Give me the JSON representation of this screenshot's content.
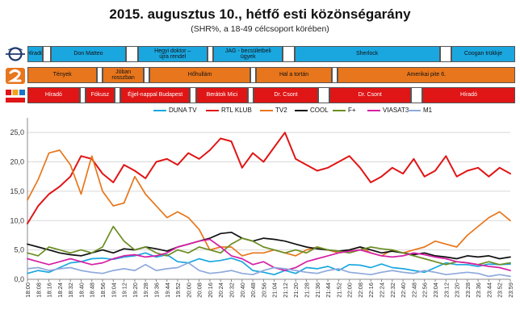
{
  "title": "2015. augusztus 10., hétfő esti közönségarány",
  "subtitle": "(SHR%, a 18-49 célcsoport körében)",
  "schedule": [
    {
      "channel_icon": "m1-logo-icon",
      "fill": "#1aa7e0",
      "text_color": "#111111",
      "programs": [
        {
          "label": "Híradó",
          "start": 0,
          "end": 13
        },
        {
          "label": "",
          "start": 13,
          "end": 20,
          "gap": true
        },
        {
          "label": "Don Matteo",
          "start": 20,
          "end": 85
        },
        {
          "label": "",
          "start": 85,
          "end": 95,
          "gap": true
        },
        {
          "label": "Hegyi doktor –\nújra rendel",
          "start": 95,
          "end": 155
        },
        {
          "label": "",
          "start": 155,
          "end": 160,
          "gap": true
        },
        {
          "label": "JAG - becsületbeli\nügyek",
          "start": 160,
          "end": 220
        },
        {
          "label": "",
          "start": 220,
          "end": 230,
          "gap": true
        },
        {
          "label": "Sherlock",
          "start": 230,
          "end": 355
        },
        {
          "label": "",
          "start": 355,
          "end": 365,
          "gap": true
        },
        {
          "label": "Coogan trükkje",
          "start": 365,
          "end": 420
        }
      ]
    },
    {
      "channel_icon": "tv2-logo-icon",
      "fill": "#e8761c",
      "text_color": "#111111",
      "programs": [
        {
          "label": "Tények",
          "start": 0,
          "end": 60
        },
        {
          "label": "",
          "start": 60,
          "end": 65,
          "gap": true
        },
        {
          "label": "Jóban rosszban",
          "start": 65,
          "end": 100
        },
        {
          "label": "",
          "start": 100,
          "end": 105,
          "gap": true
        },
        {
          "label": "Hőhullám",
          "start": 105,
          "end": 192
        },
        {
          "label": "",
          "start": 192,
          "end": 197,
          "gap": true
        },
        {
          "label": "Hal a tortán",
          "start": 197,
          "end": 262
        },
        {
          "label": "",
          "start": 262,
          "end": 267,
          "gap": true
        },
        {
          "label": "Amerikai pite 6.",
          "start": 267,
          "end": 420
        }
      ]
    },
    {
      "channel_icon": "rtl-klub-logo-icon",
      "fill": "#e01515",
      "text_color": "#ffffff",
      "programs": [
        {
          "label": "Híradó",
          "start": 0,
          "end": 45
        },
        {
          "label": "",
          "start": 45,
          "end": 50,
          "gap": true
        },
        {
          "label": "Fókusz",
          "start": 50,
          "end": 75
        },
        {
          "label": "",
          "start": 75,
          "end": 80,
          "gap": true
        },
        {
          "label": "Éjjel-nappal Budapest",
          "start": 80,
          "end": 140
        },
        {
          "label": "",
          "start": 140,
          "end": 145,
          "gap": true
        },
        {
          "label": "Berátok Mici",
          "start": 145,
          "end": 190
        },
        {
          "label": "",
          "start": 190,
          "end": 195,
          "gap": true
        },
        {
          "label": "Dr. Csont",
          "start": 195,
          "end": 250
        },
        {
          "label": "",
          "start": 250,
          "end": 260,
          "gap": true
        },
        {
          "label": "Dr. Csont",
          "start": 260,
          "end": 330
        },
        {
          "label": "",
          "start": 330,
          "end": 340,
          "gap": true
        },
        {
          "label": "Híradó",
          "start": 340,
          "end": 420
        }
      ]
    }
  ],
  "chart_data": {
    "type": "line",
    "title": "2015. augusztus 10., hétfő esti közönségarány",
    "xlabel": "",
    "ylabel": "",
    "ylim": [
      0,
      27.5
    ],
    "yticks": [
      "0,0",
      "5,0",
      "10,0",
      "15,0",
      "20,0",
      "25,0"
    ],
    "ytick_values": [
      0,
      5,
      10,
      15,
      20,
      25
    ],
    "grid": true,
    "legend_position": "top",
    "categories": [
      "18:00",
      "18:08",
      "18:16",
      "18:24",
      "18:32",
      "18:40",
      "18:48",
      "18:56",
      "19:04",
      "19:12",
      "19:20",
      "19:28",
      "19:36",
      "19:44",
      "19:52",
      "20:00",
      "20:08",
      "20:16",
      "20:24",
      "20:32",
      "20:40",
      "20:48",
      "20:56",
      "21:04",
      "21:12",
      "21:20",
      "21:28",
      "21:36",
      "21:44",
      "21:52",
      "22:00",
      "22:08",
      "22:16",
      "22:24",
      "22:32",
      "22:40",
      "22:48",
      "22:56",
      "23:04",
      "23:12",
      "23:20",
      "23:28",
      "23:36",
      "23:44",
      "23:52",
      "23:59"
    ],
    "series": [
      {
        "name": "DUNA TV",
        "color": "#1aa7e0",
        "values": [
          1.0,
          1.5,
          1.2,
          2.0,
          2.8,
          3.0,
          3.5,
          3.6,
          3.4,
          3.8,
          4.0,
          4.5,
          3.8,
          4.2,
          3.0,
          2.8,
          3.5,
          3.0,
          3.2,
          3.6,
          3.0,
          1.5,
          1.2,
          0.8,
          1.5,
          1.0,
          2.0,
          1.8,
          2.2,
          1.5,
          2.5,
          2.4,
          2.0,
          2.6,
          2.0,
          1.8,
          1.5,
          1.2,
          2.0,
          2.8,
          2.5,
          2.5,
          2.2,
          2.6,
          2.5,
          2.6
        ]
      },
      {
        "name": "RTL KLUB",
        "color": "#e01515",
        "values": [
          9.5,
          12.5,
          14.5,
          15.8,
          17.5,
          21.0,
          20.5,
          18.0,
          16.5,
          19.5,
          18.5,
          17.2,
          20.0,
          20.5,
          19.5,
          21.5,
          20.5,
          22.0,
          24.0,
          23.5,
          19.0,
          21.5,
          20.0,
          22.5,
          25.0,
          20.5,
          19.5,
          18.5,
          19.0,
          20.0,
          21.0,
          19.0,
          16.5,
          17.5,
          19.0,
          18.0,
          20.5,
          17.5,
          18.5,
          21.0,
          17.5,
          18.5,
          19.0,
          17.5,
          19.0,
          18.0
        ]
      },
      {
        "name": "TV2",
        "color": "#e8761c",
        "values": [
          13.5,
          17.0,
          21.5,
          22.0,
          19.5,
          14.5,
          21.0,
          15.0,
          12.5,
          13.0,
          17.5,
          14.5,
          12.5,
          10.5,
          11.5,
          10.5,
          8.5,
          5.0,
          5.5,
          5.5,
          4.0,
          4.5,
          4.5,
          5.0,
          4.5,
          4.0,
          5.0,
          5.5,
          5.0,
          4.5,
          5.0,
          5.5,
          4.5,
          4.0,
          5.0,
          4.5,
          5.0,
          5.5,
          6.5,
          6.0,
          5.5,
          7.5,
          9.0,
          10.5,
          11.5,
          10.0
        ]
      },
      {
        "name": "COOL",
        "color": "#111111",
        "values": [
          6.0,
          5.5,
          5.0,
          4.5,
          4.2,
          4.0,
          4.5,
          5.0,
          4.5,
          5.2,
          5.0,
          5.5,
          5.2,
          4.8,
          5.5,
          6.0,
          6.5,
          7.0,
          7.8,
          8.0,
          7.0,
          6.5,
          7.0,
          6.8,
          6.5,
          6.0,
          5.5,
          5.2,
          5.0,
          4.8,
          5.0,
          5.5,
          5.0,
          4.5,
          4.8,
          4.5,
          4.2,
          4.5,
          4.0,
          3.8,
          3.5,
          4.0,
          3.8,
          4.0,
          3.5,
          3.8
        ]
      },
      {
        "name": "F+",
        "color": "#6b8e23",
        "values": [
          4.5,
          4.0,
          5.5,
          5.0,
          4.5,
          5.0,
          4.5,
          5.5,
          9.0,
          6.5,
          5.0,
          5.5,
          4.5,
          4.0,
          5.0,
          4.5,
          5.5,
          5.0,
          4.5,
          6.0,
          7.0,
          6.5,
          5.5,
          5.0,
          4.5,
          5.0,
          4.5,
          5.5,
          5.0,
          4.8,
          4.5,
          5.0,
          5.5,
          5.2,
          5.0,
          4.5,
          4.0,
          3.5,
          3.0,
          2.5,
          3.0,
          2.8,
          2.5,
          3.0,
          2.5,
          2.8
        ]
      },
      {
        "name": "VIASAT3",
        "color": "#d61fa6",
        "values": [
          3.5,
          3.0,
          2.5,
          3.0,
          3.5,
          3.0,
          2.5,
          2.8,
          3.5,
          4.0,
          4.2,
          3.8,
          4.0,
          4.5,
          5.5,
          6.0,
          6.5,
          6.8,
          5.5,
          4.0,
          3.5,
          2.5,
          3.0,
          2.0,
          1.5,
          2.0,
          3.0,
          3.5,
          4.0,
          4.5,
          4.8,
          5.0,
          4.5,
          4.0,
          3.8,
          4.0,
          4.5,
          4.2,
          3.8,
          3.5,
          3.0,
          2.8,
          2.5,
          2.2,
          2.0,
          1.5
        ]
      },
      {
        "name": "M1",
        "color": "#8ea9db",
        "values": [
          1.8,
          2.0,
          1.5,
          1.8,
          2.0,
          1.5,
          1.2,
          1.0,
          1.5,
          1.8,
          1.5,
          2.5,
          1.5,
          1.8,
          2.0,
          2.8,
          1.5,
          1.0,
          1.2,
          1.5,
          1.0,
          0.8,
          1.5,
          2.0,
          1.8,
          1.5,
          1.2,
          1.0,
          1.5,
          1.8,
          1.2,
          1.0,
          0.8,
          1.2,
          1.5,
          1.2,
          1.0,
          1.5,
          1.2,
          0.8,
          1.0,
          1.2,
          1.0,
          0.5,
          0.8,
          0.5
        ]
      }
    ]
  }
}
